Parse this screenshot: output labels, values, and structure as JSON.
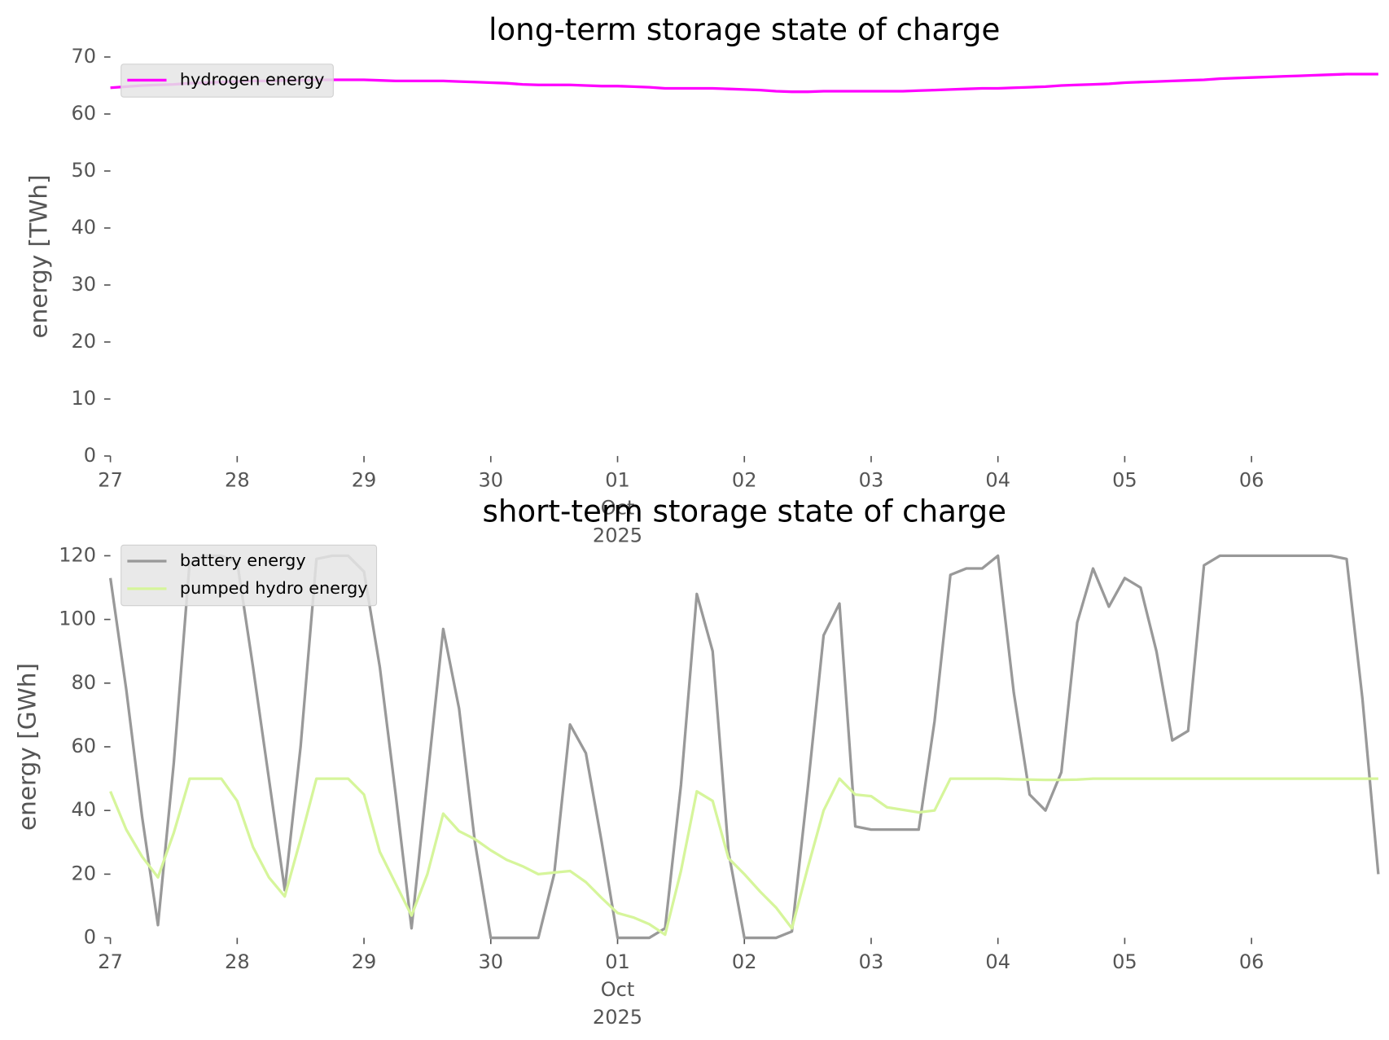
{
  "chart_data": [
    {
      "type": "line",
      "title": "long-term storage state of charge",
      "ylabel": "energy [TWh]",
      "x": [
        "2025-09-27T00:00",
        "2025-09-27T03:00",
        "2025-09-27T06:00",
        "2025-09-27T09:00",
        "2025-09-27T12:00",
        "2025-09-27T15:00",
        "2025-09-27T18:00",
        "2025-09-27T21:00",
        "2025-09-28T00:00",
        "2025-09-28T03:00",
        "2025-09-28T06:00",
        "2025-09-28T09:00",
        "2025-09-28T12:00",
        "2025-09-28T15:00",
        "2025-09-28T18:00",
        "2025-09-28T21:00",
        "2025-09-29T00:00",
        "2025-09-29T03:00",
        "2025-09-29T06:00",
        "2025-09-29T09:00",
        "2025-09-29T12:00",
        "2025-09-29T15:00",
        "2025-09-29T18:00",
        "2025-09-29T21:00",
        "2025-09-30T00:00",
        "2025-09-30T03:00",
        "2025-09-30T06:00",
        "2025-09-30T09:00",
        "2025-09-30T12:00",
        "2025-09-30T15:00",
        "2025-09-30T18:00",
        "2025-09-30T21:00",
        "2025-10-01T00:00",
        "2025-10-01T03:00",
        "2025-10-01T06:00",
        "2025-10-01T09:00",
        "2025-10-01T12:00",
        "2025-10-01T15:00",
        "2025-10-01T18:00",
        "2025-10-01T21:00",
        "2025-10-02T00:00",
        "2025-10-02T03:00",
        "2025-10-02T06:00",
        "2025-10-02T09:00",
        "2025-10-02T12:00",
        "2025-10-02T15:00",
        "2025-10-02T18:00",
        "2025-10-02T21:00",
        "2025-10-03T00:00",
        "2025-10-03T03:00",
        "2025-10-03T06:00",
        "2025-10-03T09:00",
        "2025-10-03T12:00",
        "2025-10-03T15:00",
        "2025-10-03T18:00",
        "2025-10-03T21:00",
        "2025-10-04T00:00",
        "2025-10-04T03:00",
        "2025-10-04T06:00",
        "2025-10-04T09:00",
        "2025-10-04T12:00",
        "2025-10-04T15:00",
        "2025-10-04T18:00",
        "2025-10-04T21:00",
        "2025-10-05T00:00",
        "2025-10-05T03:00",
        "2025-10-05T06:00",
        "2025-10-05T09:00",
        "2025-10-05T12:00",
        "2025-10-05T15:00",
        "2025-10-05T18:00",
        "2025-10-05T21:00",
        "2025-10-06T00:00",
        "2025-10-06T03:00",
        "2025-10-06T06:00",
        "2025-10-06T09:00",
        "2025-10-06T12:00",
        "2025-10-06T15:00",
        "2025-10-06T18:00",
        "2025-10-06T21:00",
        "2025-10-07T00:00"
      ],
      "xlim": [
        "2025-09-27T00:00",
        "2025-10-07T00:00"
      ],
      "xticks": [
        {
          "value": "2025-09-27T00:00",
          "label": "27"
        },
        {
          "value": "2025-09-28T00:00",
          "label": "28"
        },
        {
          "value": "2025-09-29T00:00",
          "label": "29"
        },
        {
          "value": "2025-09-30T00:00",
          "label": "30"
        },
        {
          "value": "2025-10-01T00:00",
          "label": "01\nOct\n2025"
        },
        {
          "value": "2025-10-02T00:00",
          "label": "02"
        },
        {
          "value": "2025-10-03T00:00",
          "label": "03"
        },
        {
          "value": "2025-10-04T00:00",
          "label": "04"
        },
        {
          "value": "2025-10-05T00:00",
          "label": "05"
        },
        {
          "value": "2025-10-06T00:00",
          "label": "06"
        }
      ],
      "ylim": [
        0,
        70
      ],
      "yticks": [
        0,
        10,
        20,
        30,
        40,
        50,
        60,
        70
      ],
      "legend": "upper left",
      "series": [
        {
          "name": "hydrogen energy",
          "color": "#ff00ff",
          "values": [
            64.6,
            64.8,
            65.0,
            65.1,
            65.2,
            65.4,
            65.5,
            65.6,
            65.7,
            65.8,
            65.8,
            65.9,
            65.9,
            66.0,
            66.0,
            66.0,
            66.0,
            65.9,
            65.8,
            65.8,
            65.8,
            65.8,
            65.7,
            65.6,
            65.5,
            65.4,
            65.2,
            65.1,
            65.1,
            65.1,
            65.0,
            64.9,
            64.9,
            64.8,
            64.7,
            64.5,
            64.5,
            64.5,
            64.5,
            64.4,
            64.3,
            64.2,
            64.0,
            63.9,
            63.9,
            64.0,
            64.0,
            64.0,
            64.0,
            64.0,
            64.0,
            64.1,
            64.2,
            64.3,
            64.4,
            64.5,
            64.5,
            64.6,
            64.7,
            64.8,
            65.0,
            65.1,
            65.2,
            65.3,
            65.5,
            65.6,
            65.7,
            65.8,
            65.9,
            66.0,
            66.2,
            66.3,
            66.4,
            66.5,
            66.6,
            66.7,
            66.8,
            66.9,
            67.0,
            67.0,
            67.0
          ]
        }
      ]
    },
    {
      "type": "line",
      "title": "short-term storage state of charge",
      "ylabel": "energy [GWh]",
      "x": [
        "2025-09-27T00:00",
        "2025-09-27T03:00",
        "2025-09-27T06:00",
        "2025-09-27T09:00",
        "2025-09-27T12:00",
        "2025-09-27T15:00",
        "2025-09-27T18:00",
        "2025-09-27T21:00",
        "2025-09-28T00:00",
        "2025-09-28T03:00",
        "2025-09-28T06:00",
        "2025-09-28T09:00",
        "2025-09-28T12:00",
        "2025-09-28T15:00",
        "2025-09-28T18:00",
        "2025-09-28T21:00",
        "2025-09-29T00:00",
        "2025-09-29T03:00",
        "2025-09-29T06:00",
        "2025-09-29T09:00",
        "2025-09-29T12:00",
        "2025-09-29T15:00",
        "2025-09-29T18:00",
        "2025-09-29T21:00",
        "2025-09-30T00:00",
        "2025-09-30T03:00",
        "2025-09-30T06:00",
        "2025-09-30T09:00",
        "2025-09-30T12:00",
        "2025-09-30T15:00",
        "2025-09-30T18:00",
        "2025-09-30T21:00",
        "2025-10-01T00:00",
        "2025-10-01T03:00",
        "2025-10-01T06:00",
        "2025-10-01T09:00",
        "2025-10-01T12:00",
        "2025-10-01T15:00",
        "2025-10-01T18:00",
        "2025-10-01T21:00",
        "2025-10-02T00:00",
        "2025-10-02T03:00",
        "2025-10-02T06:00",
        "2025-10-02T09:00",
        "2025-10-02T12:00",
        "2025-10-02T15:00",
        "2025-10-02T18:00",
        "2025-10-02T21:00",
        "2025-10-03T00:00",
        "2025-10-03T03:00",
        "2025-10-03T06:00",
        "2025-10-03T09:00",
        "2025-10-03T12:00",
        "2025-10-03T15:00",
        "2025-10-03T18:00",
        "2025-10-03T21:00",
        "2025-10-04T00:00",
        "2025-10-04T03:00",
        "2025-10-04T06:00",
        "2025-10-04T09:00",
        "2025-10-04T12:00",
        "2025-10-04T15:00",
        "2025-10-04T18:00",
        "2025-10-04T21:00",
        "2025-10-05T00:00",
        "2025-10-05T03:00",
        "2025-10-05T06:00",
        "2025-10-05T09:00",
        "2025-10-05T12:00",
        "2025-10-05T15:00",
        "2025-10-05T18:00",
        "2025-10-05T21:00",
        "2025-10-06T00:00",
        "2025-10-06T03:00",
        "2025-10-06T06:00",
        "2025-10-06T09:00",
        "2025-10-06T12:00",
        "2025-10-06T15:00",
        "2025-10-06T18:00",
        "2025-10-06T21:00",
        "2025-10-07T00:00"
      ],
      "xlim": [
        "2025-09-27T00:00",
        "2025-10-07T00:00"
      ],
      "xticks": [
        {
          "value": "2025-09-27T00:00",
          "label": "27"
        },
        {
          "value": "2025-09-28T00:00",
          "label": "28"
        },
        {
          "value": "2025-09-29T00:00",
          "label": "29"
        },
        {
          "value": "2025-09-30T00:00",
          "label": "30"
        },
        {
          "value": "2025-10-01T00:00",
          "label": "01\nOct\n2025"
        },
        {
          "value": "2025-10-02T00:00",
          "label": "02"
        },
        {
          "value": "2025-10-03T00:00",
          "label": "03"
        },
        {
          "value": "2025-10-04T00:00",
          "label": "04"
        },
        {
          "value": "2025-10-05T00:00",
          "label": "05"
        },
        {
          "value": "2025-10-06T00:00",
          "label": "06"
        }
      ],
      "ylim": [
        0,
        120
      ],
      "yticks": [
        0,
        20,
        40,
        60,
        80,
        100,
        120
      ],
      "legend": "upper left",
      "series": [
        {
          "name": "battery energy",
          "color": "#999999",
          "values": [
            113,
            78,
            38,
            4,
            55,
            118,
            120,
            120,
            118,
            85,
            50,
            15,
            60,
            119,
            120,
            120,
            115,
            85,
            45,
            3,
            50,
            97,
            72,
            30,
            0,
            0,
            0,
            0,
            20,
            67,
            58,
            30,
            0,
            0,
            0,
            3,
            48,
            108,
            90,
            27,
            0,
            0,
            0,
            2,
            47,
            95,
            105,
            35,
            34,
            34,
            34,
            34,
            68,
            114,
            116,
            116,
            120,
            77,
            45,
            40,
            52,
            99,
            116,
            104,
            113,
            110,
            90,
            62,
            65,
            117,
            120,
            120,
            120,
            120,
            120,
            120,
            120,
            120,
            119,
            75,
            20
          ]
        },
        {
          "name": "pumped hydro energy",
          "color": "#d6f59b",
          "values": [
            46,
            34,
            25.5,
            19,
            33,
            50,
            50,
            50,
            43,
            28.5,
            19,
            13,
            31,
            50,
            50,
            50,
            45,
            27,
            17,
            7,
            20,
            39,
            33.5,
            31,
            27.5,
            24.5,
            22.5,
            20,
            20.5,
            21,
            17.5,
            12.5,
            7.8,
            6.4,
            4.3,
            1,
            21,
            46,
            43,
            25,
            20,
            14.5,
            9.5,
            3,
            22,
            40,
            50,
            45,
            44.5,
            41,
            40.2,
            39.4,
            40,
            50,
            50,
            50,
            50,
            49.8,
            49.7,
            49.6,
            49.6,
            49.7,
            50,
            50,
            50,
            50,
            50,
            50,
            50,
            50,
            50,
            50,
            50,
            50,
            50,
            50,
            50,
            50,
            50,
            50,
            50
          ]
        }
      ]
    }
  ]
}
